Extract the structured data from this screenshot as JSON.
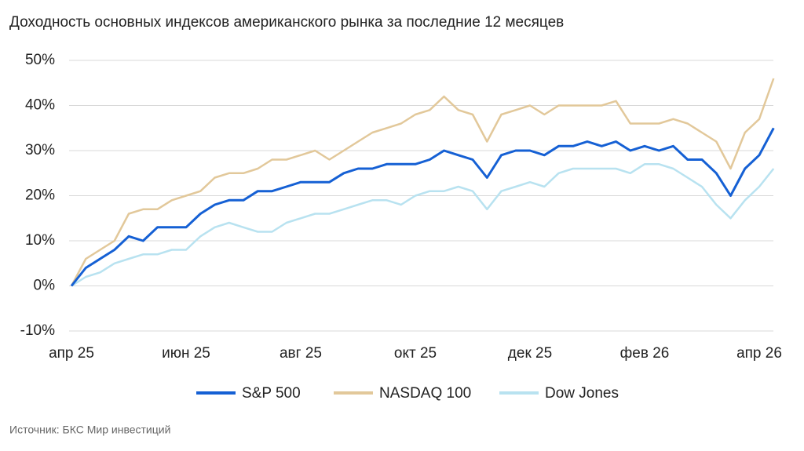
{
  "chart_data": {
    "type": "line",
    "title": "Доходность основных индексов американского рынка за последние 12 месяцев",
    "source": "Источник: БКС Мир инвестиций",
    "categories": [
      "апр 25",
      null,
      null,
      null,
      null,
      null,
      null,
      null,
      "июн 25",
      null,
      null,
      null,
      null,
      null,
      null,
      null,
      "авг 25",
      null,
      null,
      null,
      null,
      null,
      null,
      null,
      "окт 25",
      null,
      null,
      null,
      null,
      null,
      null,
      null,
      "дек 25",
      null,
      null,
      null,
      null,
      null,
      null,
      null,
      "фев 26",
      null,
      null,
      null,
      null,
      null,
      null,
      null,
      "апр 26",
      null
    ],
    "series": [
      {
        "name": "S&P 500",
        "color": "#1560d4",
        "values": [
          0,
          4,
          6,
          8,
          11,
          10,
          13,
          13,
          13,
          16,
          18,
          19,
          19,
          21,
          21,
          22,
          23,
          23,
          23,
          25,
          26,
          26,
          27,
          27,
          27,
          28,
          30,
          29,
          28,
          24,
          29,
          30,
          30,
          29,
          31,
          31,
          32,
          31,
          32,
          30,
          31,
          30,
          31,
          28,
          28,
          25,
          20,
          26,
          29,
          35
        ]
      },
      {
        "name": "NASDAQ 100",
        "color": "#e2c89a",
        "values": [
          0,
          6,
          8,
          10,
          16,
          17,
          17,
          19,
          20,
          21,
          24,
          25,
          25,
          26,
          28,
          28,
          29,
          30,
          28,
          30,
          32,
          34,
          35,
          36,
          38,
          39,
          42,
          39,
          38,
          32,
          38,
          39,
          40,
          38,
          40,
          40,
          40,
          40,
          41,
          36,
          36,
          36,
          37,
          36,
          34,
          32,
          26,
          34,
          37,
          46
        ]
      },
      {
        "name": "Dow Jones",
        "color": "#b8e2f0",
        "values": [
          0,
          2,
          3,
          5,
          6,
          7,
          7,
          8,
          8,
          11,
          13,
          14,
          13,
          12,
          12,
          14,
          15,
          16,
          16,
          17,
          18,
          19,
          19,
          18,
          20,
          21,
          21,
          22,
          21,
          17,
          21,
          22,
          23,
          22,
          25,
          26,
          26,
          26,
          26,
          25,
          27,
          27,
          26,
          24,
          22,
          18,
          15,
          19,
          22,
          26
        ]
      }
    ],
    "ylim": [
      -10,
      50
    ],
    "yticks": [
      {
        "value": -10,
        "label": "-10%"
      },
      {
        "value": 0,
        "label": "0%"
      },
      {
        "value": 10,
        "label": "10%"
      },
      {
        "value": 20,
        "label": "20%"
      },
      {
        "value": 30,
        "label": "30%"
      },
      {
        "value": 40,
        "label": "40%"
      },
      {
        "value": 50,
        "label": "50%"
      }
    ],
    "grid": true
  }
}
